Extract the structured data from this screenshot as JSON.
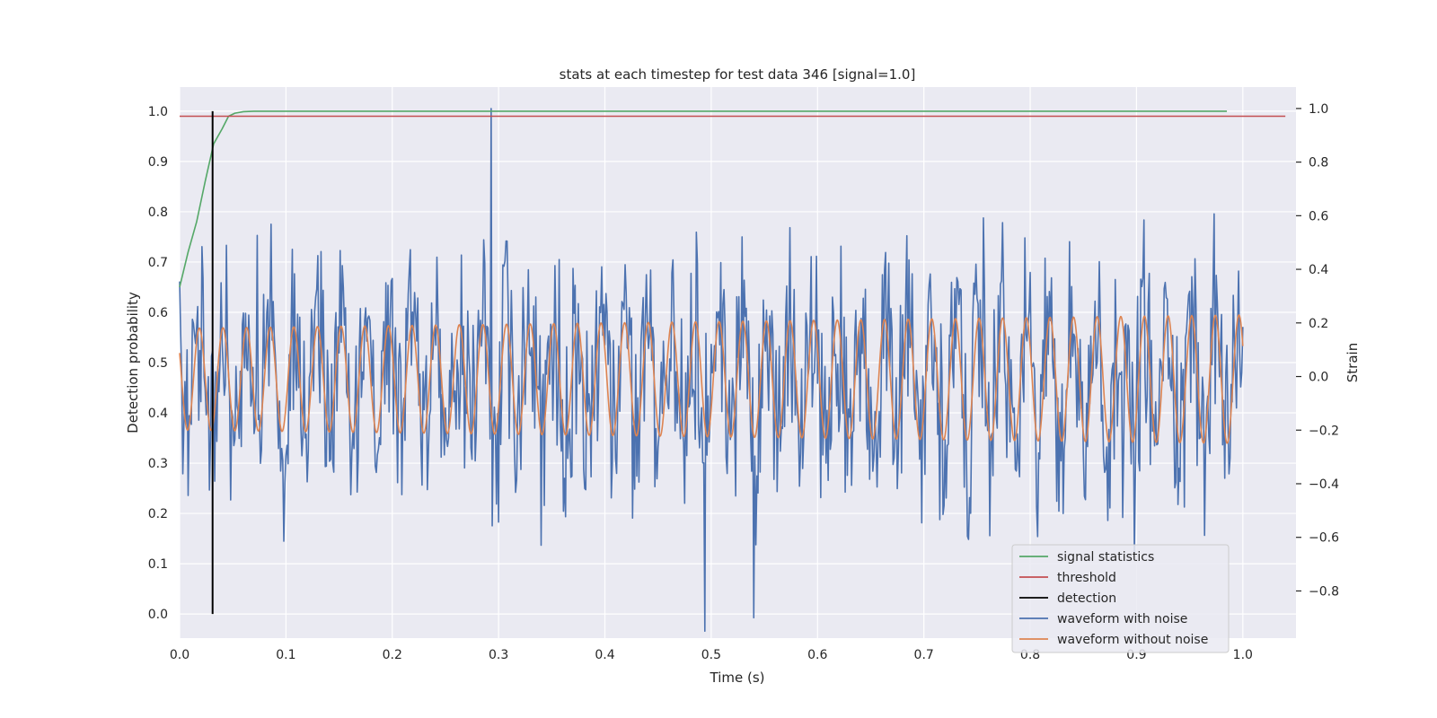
{
  "chart_data": {
    "type": "line",
    "title": "stats at each timestep for test data 346 [signal=1.0]",
    "xlabel": "Time (s)",
    "ylabel": "Detection probability",
    "ylabel_right": "Strain",
    "xlim": [
      0.0,
      1.05
    ],
    "ylim": [
      -0.048,
      1.048
    ],
    "ylim_right": [
      -0.976,
      1.08
    ],
    "x_ticks": [
      "0.0",
      "0.1",
      "0.2",
      "0.3",
      "0.4",
      "0.5",
      "0.6",
      "0.7",
      "0.8",
      "0.9",
      "1.0"
    ],
    "y_ticks": [
      "0.0",
      "0.1",
      "0.2",
      "0.3",
      "0.4",
      "0.5",
      "0.6",
      "0.7",
      "0.8",
      "0.9",
      "1.0"
    ],
    "y_right_ticks": [
      "1.0",
      "0.8",
      "0.6",
      "0.4",
      "0.2",
      "0.0",
      "−0.2",
      "−0.4",
      "−0.6",
      "−0.8"
    ],
    "grid": true,
    "legend_position": "lower right",
    "legend": [
      "signal statistics",
      "threshold",
      "detection",
      "waveform with noise",
      "waveform without noise"
    ],
    "colors": {
      "signal_statistics": "#55a868",
      "threshold": "#c44e52",
      "detection": "#000000",
      "noisy": "#4c72b0",
      "clean": "#dd8452",
      "plot_bg": "#eaeaf2",
      "grid": "#ffffff"
    },
    "series": [
      {
        "name": "signal statistics",
        "axis": "left",
        "x": [
          0.0,
          0.008,
          0.016,
          0.024,
          0.032,
          0.04,
          0.046,
          0.052,
          0.06,
          0.07,
          0.1,
          0.3,
          0.6,
          0.985
        ],
        "y": [
          0.65,
          0.72,
          0.78,
          0.86,
          0.935,
          0.965,
          0.99,
          0.996,
          0.999,
          1.0,
          1.0,
          1.0,
          1.0,
          1.0
        ]
      },
      {
        "name": "threshold",
        "axis": "left",
        "x": [
          0.0,
          1.04
        ],
        "y": [
          0.99,
          0.99
        ]
      },
      {
        "name": "detection",
        "axis": "left",
        "x": [
          0.031,
          0.031
        ],
        "y": [
          0.0,
          1.0
        ]
      },
      {
        "name": "waveform with noise",
        "axis": "right",
        "x_range": [
          0.0,
          1.0
        ],
        "points": 1000,
        "y_range": [
          -0.95,
          1.0
        ],
        "approx": "noisy oscillation, spikes 1.0 at t=0.293 and -0.95 at t=0.494"
      },
      {
        "name": "waveform without noise",
        "axis": "right",
        "x_range": [
          0.0,
          1.0
        ],
        "frequency_hz": 45,
        "amplitude_start": 0.19,
        "amplitude_end": 0.24,
        "offset": -0.01
      }
    ]
  }
}
